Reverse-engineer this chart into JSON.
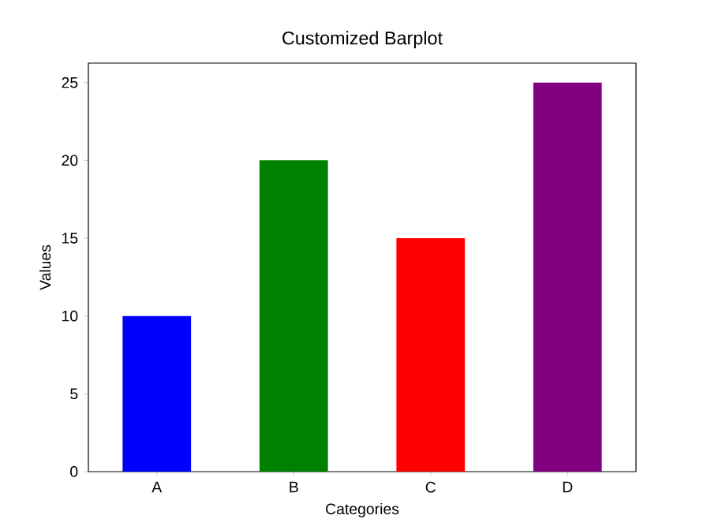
{
  "chart_data": {
    "type": "bar",
    "title": "Customized Barplot",
    "xlabel": "Categories",
    "ylabel": "Values",
    "categories": [
      "A",
      "B",
      "C",
      "D"
    ],
    "values": [
      10,
      20,
      15,
      25
    ],
    "colors": [
      "#0000ff",
      "#008000",
      "#ff0000",
      "#800080"
    ],
    "ylim": [
      0,
      26.25
    ],
    "yticks": [
      0,
      5,
      10,
      15,
      20,
      25
    ],
    "grid": false
  }
}
